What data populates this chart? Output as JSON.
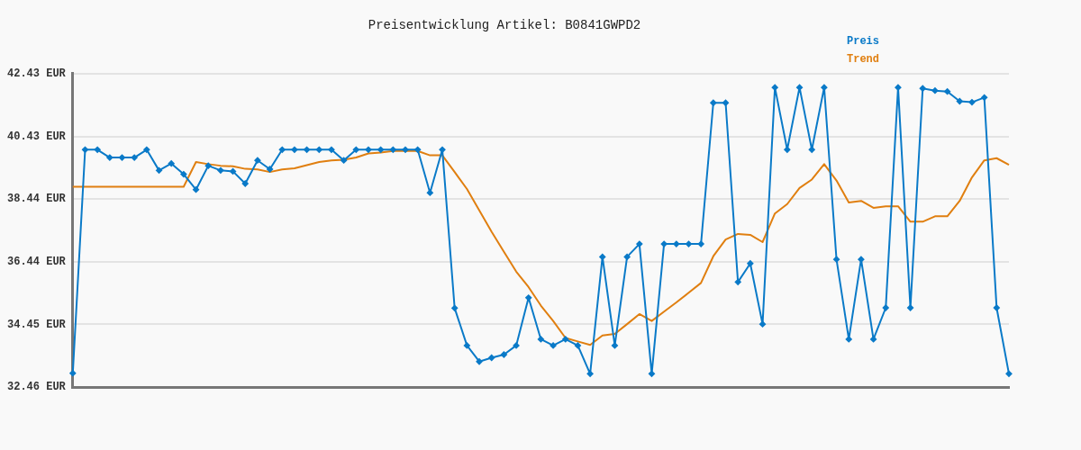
{
  "chart_data": {
    "type": "line",
    "title": "Preisentwicklung Artikel: B0841GWPD2",
    "categories": [
      null,
      null,
      null,
      null,
      null,
      null,
      null,
      null,
      null,
      null,
      null,
      null,
      null,
      null,
      null,
      null,
      null,
      null,
      null,
      null,
      null,
      null,
      null,
      null,
      null,
      null,
      null,
      null,
      null,
      null,
      null,
      null,
      null,
      null,
      null,
      null,
      null,
      null,
      null,
      null,
      null,
      null,
      null,
      null,
      null,
      null,
      null,
      null,
      null,
      null,
      null,
      null,
      null,
      null,
      null,
      null,
      null,
      null,
      null,
      null,
      null,
      null,
      null,
      null,
      null,
      null,
      null,
      null,
      null,
      null,
      null,
      null,
      null,
      null,
      null,
      null,
      null
    ],
    "series": [
      {
        "name": "Preis",
        "color": "#0a7ac8",
        "marker": "diamond",
        "values": [
          32.9,
          40.01,
          40.01,
          39.76,
          39.76,
          39.76,
          40.01,
          39.35,
          39.57,
          39.23,
          38.74,
          39.5,
          39.35,
          39.32,
          38.93,
          39.67,
          39.39,
          40.01,
          40.01,
          40.01,
          40.01,
          40.01,
          39.67,
          40.01,
          40.01,
          40.01,
          40.01,
          40.01,
          40.01,
          38.64,
          40.01,
          34.97,
          33.78,
          33.27,
          33.39,
          33.49,
          33.78,
          35.3,
          33.98,
          33.78,
          33.98,
          33.78,
          32.88,
          36.6,
          33.78,
          36.6,
          37.01,
          32.88,
          37.01,
          37.01,
          37.01,
          37.01,
          41.5,
          41.5,
          35.8,
          36.39,
          34.46,
          41.99,
          40.01,
          41.99,
          40.01,
          41.99,
          36.52,
          33.98,
          36.52,
          33.98,
          34.98,
          41.99,
          34.98,
          41.96,
          41.89,
          41.86,
          41.55,
          41.52,
          41.67,
          34.98,
          32.88
        ]
      },
      {
        "name": "Trend",
        "color": "#e07f10",
        "marker": "none",
        "values": [
          38.83,
          38.83,
          38.83,
          38.83,
          38.83,
          38.83,
          38.83,
          38.83,
          38.83,
          38.83,
          39.62,
          39.55,
          39.5,
          39.48,
          39.4,
          39.38,
          39.3,
          39.38,
          39.42,
          39.52,
          39.62,
          39.67,
          39.69,
          39.76,
          39.89,
          39.92,
          39.97,
          39.97,
          39.97,
          39.83,
          39.83,
          39.3,
          38.76,
          38.08,
          37.4,
          36.76,
          36.13,
          35.64,
          35.05,
          34.56,
          34.02,
          33.91,
          33.8,
          34.1,
          34.15,
          34.46,
          34.78,
          34.56,
          34.86,
          35.15,
          35.46,
          35.77,
          36.62,
          37.15,
          37.33,
          37.3,
          37.07,
          37.98,
          38.28,
          38.79,
          39.06,
          39.55,
          39.03,
          38.33,
          38.38,
          38.16,
          38.21,
          38.21,
          37.72,
          37.72,
          37.89,
          37.89,
          38.38,
          39.13,
          39.67,
          39.74,
          39.53
        ]
      }
    ],
    "ylim": [
      32.46,
      42.43
    ],
    "yticks": [
      {
        "value": 32.46,
        "label": "32.46 EUR"
      },
      {
        "value": 34.45,
        "label": "34.45 EUR"
      },
      {
        "value": 36.44,
        "label": "36.44 EUR"
      },
      {
        "value": 38.44,
        "label": "38.44 EUR"
      },
      {
        "value": 40.43,
        "label": "40.43 EUR"
      },
      {
        "value": 42.43,
        "label": "42.43 EUR"
      }
    ],
    "tick_labels": "y",
    "grid": "y",
    "legend": "top right",
    "line_style": "solid"
  }
}
